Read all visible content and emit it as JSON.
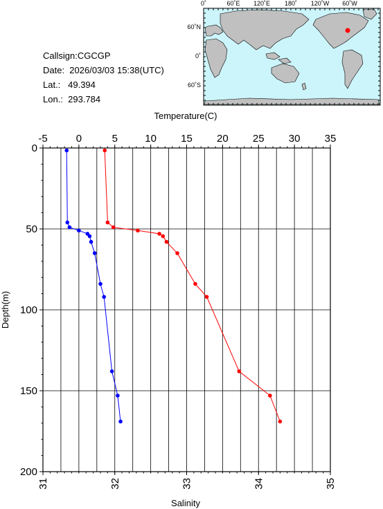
{
  "station": {
    "callsign": "Callsign:CGCGP",
    "date": "Date:  2026/03/03 15:38(UTC)",
    "lat": "Lat.:   49.394",
    "lon": "Lon.:  293.784"
  },
  "map": {
    "lon_labels": [
      "0˚",
      "60˚E",
      "120˚E",
      "180˚",
      "120˚W",
      "60˚W"
    ],
    "lat_labels": [
      "60˚N",
      "0˚",
      "60˚S"
    ],
    "ocean_color": "#ccf5fb",
    "land_color": "#c0c0c0",
    "marker_color": "#ff0000"
  },
  "chart_data": {
    "type": "line",
    "top_axis": {
      "label": "Temperature(C)",
      "range": [
        -5,
        35
      ],
      "ticks": [
        -5,
        0,
        5,
        10,
        15,
        20,
        25,
        30,
        35
      ]
    },
    "bottom_axis": {
      "label": "Salinity",
      "range": [
        31,
        35
      ],
      "ticks": [
        31,
        32,
        33,
        34,
        35
      ]
    },
    "y_axis": {
      "label": "Depth(m)",
      "range": [
        0,
        200
      ],
      "inverted": true,
      "ticks": [
        0,
        50,
        100,
        150,
        200
      ]
    },
    "grid": true,
    "series": [
      {
        "axis": "temperature",
        "color": "#ff0000",
        "points": [
          {
            "x": 3.6,
            "depth": 1.5
          },
          {
            "x": 4.0,
            "depth": 46
          },
          {
            "x": 4.8,
            "depth": 49
          },
          {
            "x": 8.2,
            "depth": 51
          },
          {
            "x": 11.2,
            "depth": 53
          },
          {
            "x": 11.7,
            "depth": 54.5
          },
          {
            "x": 12.2,
            "depth": 58
          },
          {
            "x": 13.7,
            "depth": 65
          },
          {
            "x": 16.2,
            "depth": 84
          },
          {
            "x": 17.8,
            "depth": 92
          },
          {
            "x": 22.3,
            "depth": 138
          },
          {
            "x": 26.6,
            "depth": 153
          },
          {
            "x": 28.0,
            "depth": 169
          }
        ]
      },
      {
        "axis": "salinity",
        "color": "#0000ff",
        "points": [
          {
            "x": 31.33,
            "depth": 1.5
          },
          {
            "x": 31.34,
            "depth": 46
          },
          {
            "x": 31.37,
            "depth": 49
          },
          {
            "x": 31.5,
            "depth": 51
          },
          {
            "x": 31.62,
            "depth": 53
          },
          {
            "x": 31.65,
            "depth": 54.5
          },
          {
            "x": 31.67,
            "depth": 58
          },
          {
            "x": 31.72,
            "depth": 65
          },
          {
            "x": 31.8,
            "depth": 84
          },
          {
            "x": 31.85,
            "depth": 92
          },
          {
            "x": 31.96,
            "depth": 138
          },
          {
            "x": 32.04,
            "depth": 153
          },
          {
            "x": 32.08,
            "depth": 169
          }
        ]
      }
    ]
  }
}
